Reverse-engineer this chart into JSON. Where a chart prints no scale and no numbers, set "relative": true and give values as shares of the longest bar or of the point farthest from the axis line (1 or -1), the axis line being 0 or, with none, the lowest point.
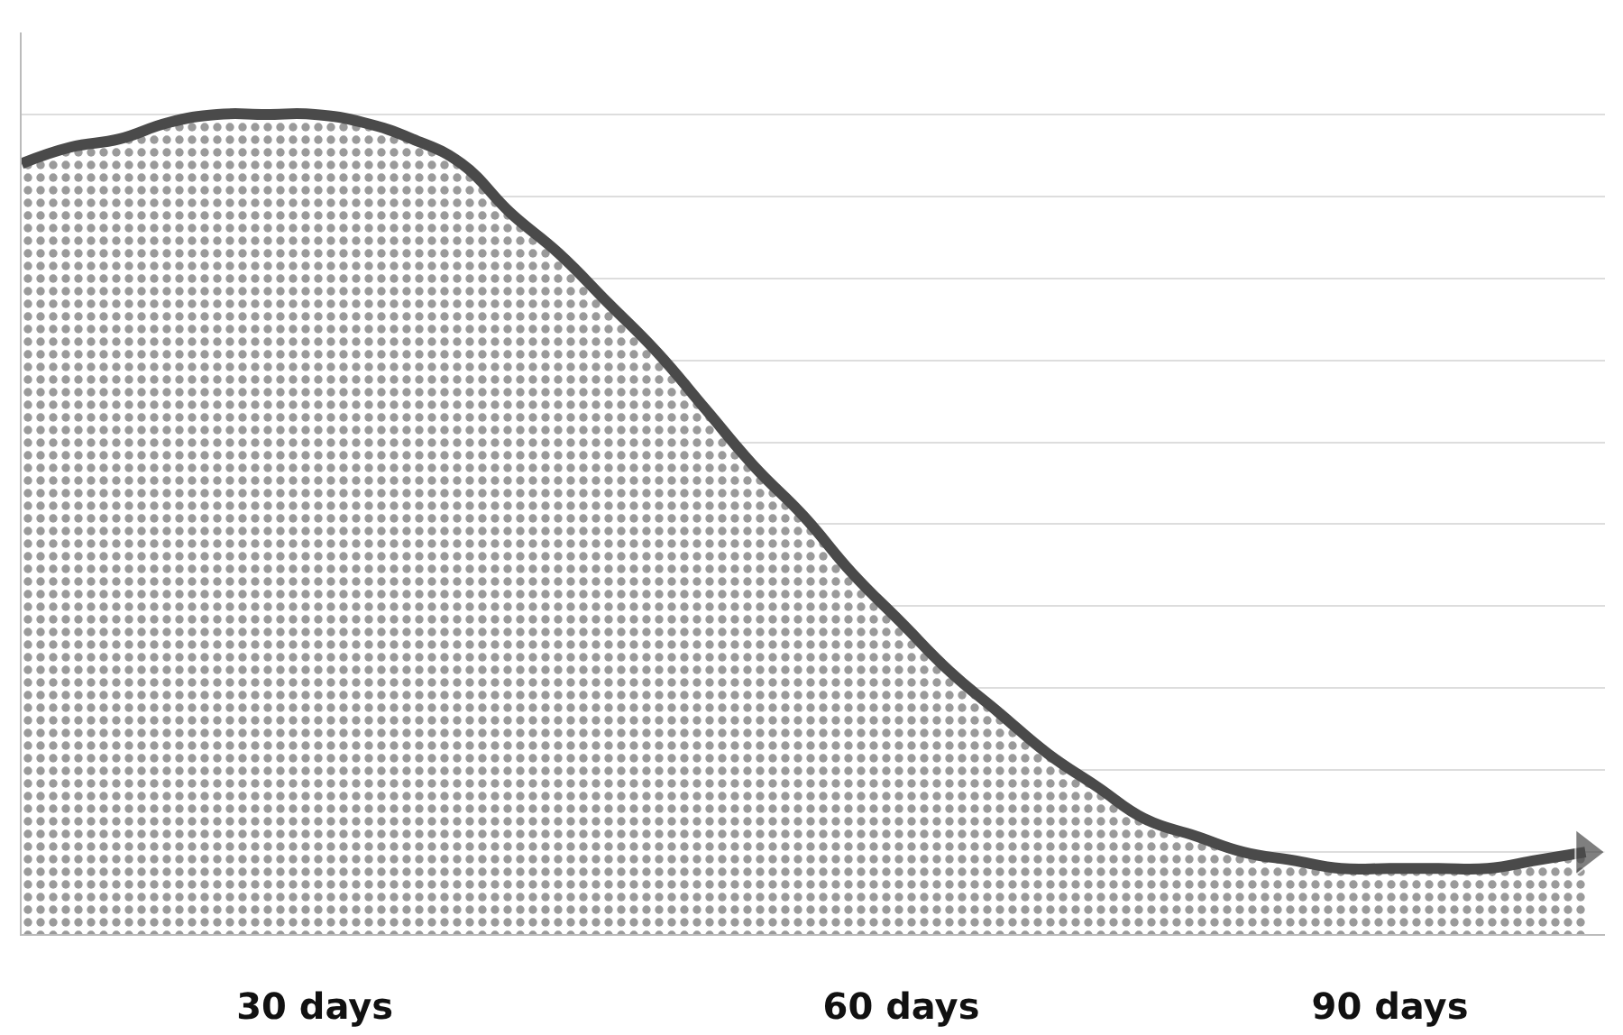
{
  "chart_data": {
    "type": "area",
    "relative": true,
    "grid": "y",
    "color": "#4a4a4a",
    "categories": [
      null,
      null,
      null,
      null,
      null,
      null,
      "30 days",
      null,
      null,
      null,
      null,
      null,
      null,
      null,
      null,
      null,
      null,
      null,
      "60 days",
      null,
      null,
      null,
      null,
      null,
      null,
      null,
      null,
      null,
      "90 days",
      null,
      null,
      null,
      null
    ],
    "values": [
      0.94,
      0.96,
      0.97,
      0.99,
      1.0,
      1,
      1,
      0.99,
      0.97,
      0.94,
      0.88,
      0.83,
      0.77,
      0.71,
      0.64,
      0.57,
      0.51,
      0.44,
      0.38,
      0.32,
      0.27,
      0.22,
      0.18,
      0.14,
      0.12,
      0.1,
      0.09,
      0.08,
      0.08,
      0.08,
      0.08,
      0.09,
      0.1
    ]
  }
}
